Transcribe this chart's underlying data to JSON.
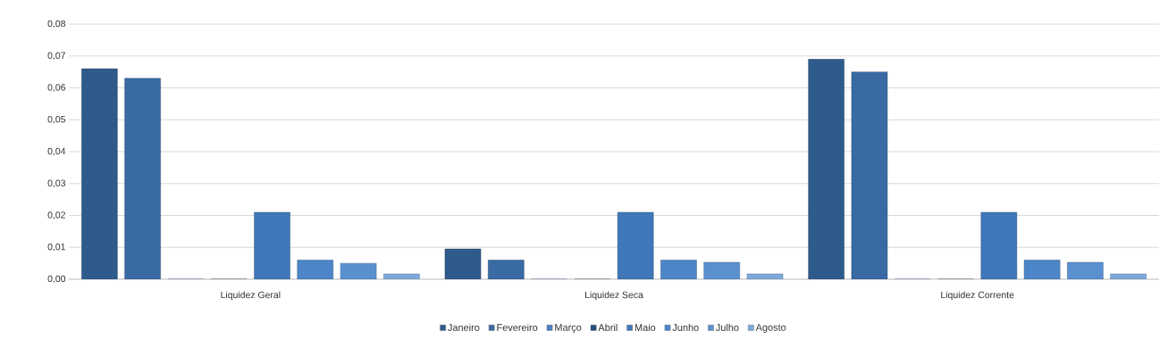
{
  "chart_data": {
    "type": "bar",
    "categories": [
      "Liquidez Geral",
      "Liquidez Seca",
      "Liquidez Corrente"
    ],
    "series": [
      {
        "name": "Janeiro",
        "color": "#2f5b8c",
        "values": [
          0.066,
          0.0095,
          0.069
        ]
      },
      {
        "name": "Fevereiro",
        "color": "#3a6aa3",
        "values": [
          0.063,
          0.006,
          0.065
        ]
      },
      {
        "name": "Março",
        "color": "#4a7fc0",
        "values": [
          0,
          0,
          0
        ]
      },
      {
        "name": "Abril",
        "color": "#284d79",
        "values": [
          0,
          0,
          0
        ]
      },
      {
        "name": "Maio",
        "color": "#3f77b8",
        "values": [
          0.021,
          0.021,
          0.021
        ]
      },
      {
        "name": "Junho",
        "color": "#4c85c8",
        "values": [
          0.006,
          0.006,
          0.006
        ]
      },
      {
        "name": "Julho",
        "color": "#5a90d0",
        "values": [
          0.005,
          0.0053,
          0.0053
        ]
      },
      {
        "name": "Agosto",
        "color": "#7ea8dc",
        "values": [
          0.0017,
          0.0017,
          0.0017
        ]
      }
    ],
    "ylim": [
      0,
      0.08
    ],
    "yticks": [
      {
        "value": 0,
        "label": "0,00"
      },
      {
        "value": 0.01,
        "label": "0,01"
      },
      {
        "value": 0.02,
        "label": "0,02"
      },
      {
        "value": 0.03,
        "label": "0,03"
      },
      {
        "value": 0.04,
        "label": "0,04"
      },
      {
        "value": 0.05,
        "label": "0,05"
      },
      {
        "value": 0.06,
        "label": "0,06"
      },
      {
        "value": 0.07,
        "label": "0,07"
      },
      {
        "value": 0.08,
        "label": "0,08"
      }
    ],
    "grid": "y",
    "legend": "bottom"
  }
}
